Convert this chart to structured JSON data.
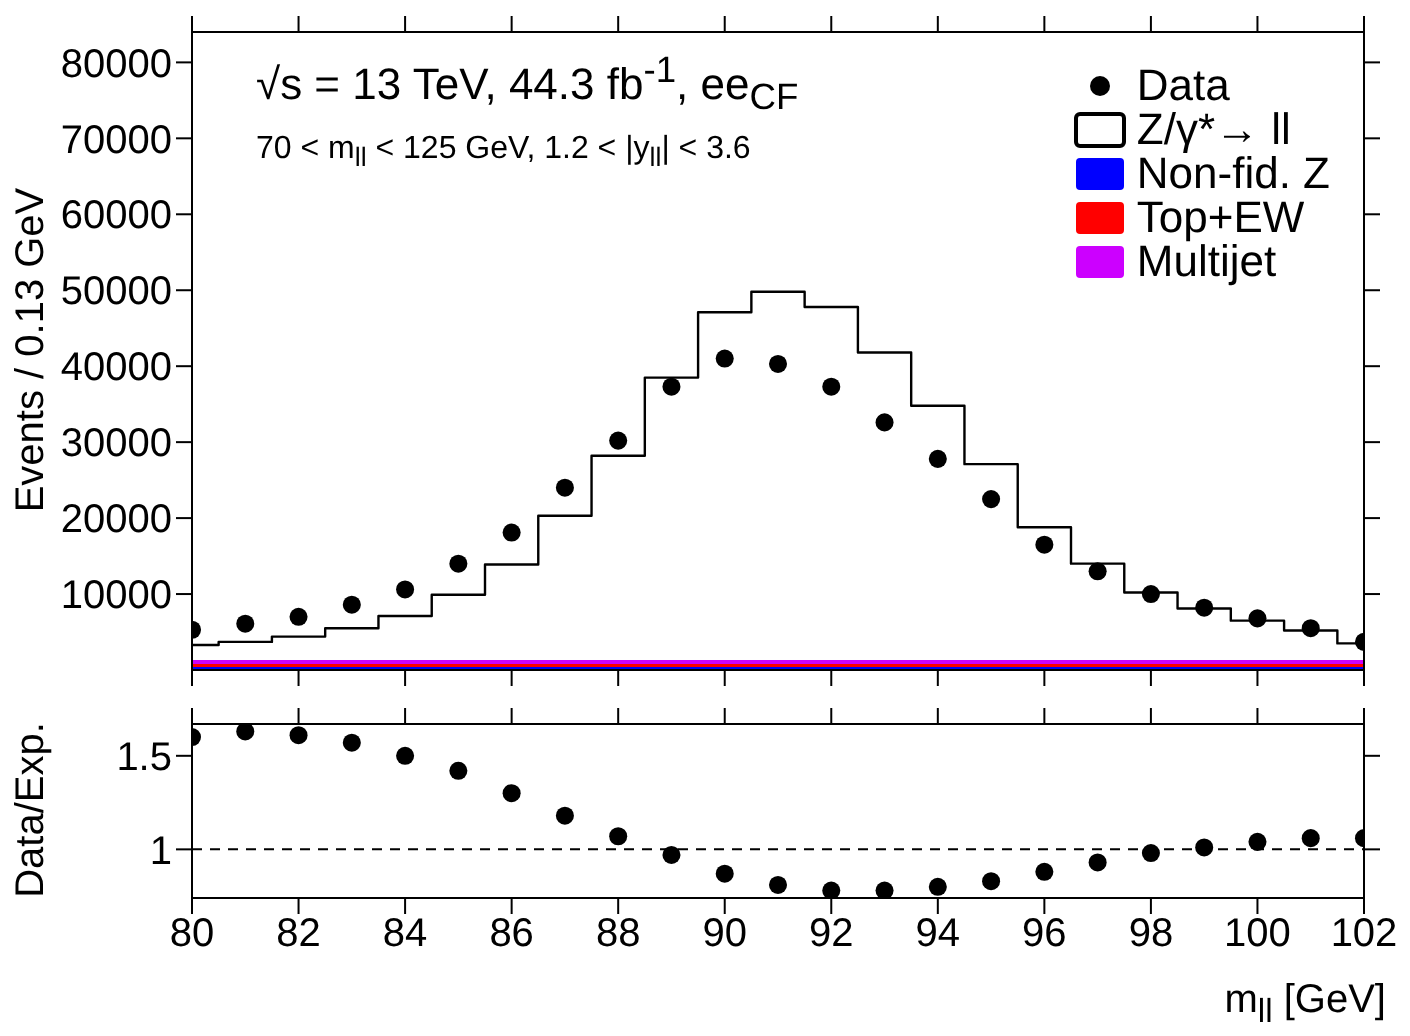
{
  "chart_data": [
    {
      "type": "scatter",
      "ylabel": "Events / 0.13 GeV",
      "annotations": [
        "√s = 13 TeV, 44.3 fb$^{-1}$, ee$_{CF}$",
        "70 < m$_{ll}$ < 125 GeV, 1.2 < |y$_{ll}$| < 3.6"
      ],
      "x": [
        80,
        81,
        82,
        83,
        84,
        85,
        86,
        87,
        88,
        89,
        90,
        91,
        92,
        93,
        94,
        95,
        96,
        97,
        98,
        99,
        100,
        101,
        102
      ],
      "series": [
        {
          "name": "Data",
          "color": "#000000",
          "marker": "circle",
          "values": [
            5300,
            6100,
            7000,
            8600,
            10600,
            14000,
            18100,
            24000,
            30200,
            37300,
            41000,
            40300,
            37300,
            32600,
            27800,
            22500,
            16500,
            13000,
            10000,
            8200,
            6800,
            5500,
            3700
          ]
        },
        {
          "name": "Z/γ*→ ll",
          "type": "step",
          "color": "#000000",
          "values": [
            3300,
            3700,
            4400,
            5500,
            7100,
            9900,
            13900,
            20300,
            28200,
            38500,
            47100,
            49800,
            47800,
            41800,
            34800,
            27100,
            18800,
            14000,
            10200,
            8100,
            6500,
            5200,
            3500
          ]
        },
        {
          "name": "Non-fid. Z",
          "type": "area",
          "color": "#0000ff",
          "values": [
            400,
            400,
            400,
            400,
            400,
            400,
            400,
            400,
            400,
            400,
            400,
            400,
            400,
            400,
            400,
            400,
            400,
            400,
            400,
            400,
            400,
            400,
            400
          ]
        },
        {
          "name": "Top+EW",
          "type": "area",
          "color": "#ff0000",
          "values": [
            400,
            400,
            400,
            400,
            400,
            400,
            400,
            400,
            400,
            400,
            400,
            400,
            400,
            400,
            400,
            400,
            400,
            400,
            400,
            400,
            400,
            400,
            400
          ]
        },
        {
          "name": "Multijet",
          "type": "area",
          "color": "#cc00ff",
          "values": [
            400,
            400,
            400,
            400,
            400,
            400,
            400,
            400,
            400,
            400,
            400,
            400,
            400,
            400,
            400,
            400,
            400,
            400,
            400,
            400,
            400,
            400,
            400
          ]
        }
      ],
      "stacked": true,
      "legend": "top right",
      "tick_labels": "y",
      "xlim": [
        80,
        102
      ],
      "xticks": [
        80,
        82,
        84,
        86,
        88,
        90,
        92,
        94,
        96,
        98,
        100,
        102
      ],
      "ylim": [
        0,
        84000
      ],
      "yticks": [
        10000,
        20000,
        30000,
        40000,
        50000,
        60000,
        70000,
        80000
      ]
    },
    {
      "type": "scatter",
      "ylabel": "Data/Exp.",
      "xlabel": "m$_{ll}$ [GeV]",
      "x": [
        80,
        81,
        82,
        83,
        84,
        85,
        86,
        87,
        88,
        89,
        90,
        91,
        92,
        93,
        94,
        95,
        96,
        97,
        98,
        99,
        100,
        101,
        102
      ],
      "series": [
        {
          "color": "#000000",
          "values": [
            1.6,
            1.63,
            1.61,
            1.57,
            1.5,
            1.42,
            1.3,
            1.18,
            1.07,
            0.97,
            0.87,
            0.81,
            0.78,
            0.78,
            0.8,
            0.83,
            0.88,
            0.93,
            0.98,
            1.01,
            1.04,
            1.06,
            1.06
          ]
        }
      ],
      "marker": "circle",
      "ref_lines": [
        {
          "axis": "y",
          "value": 1,
          "color": "#000000",
          "line_style": "dashed"
        }
      ],
      "xlim": [
        80,
        102
      ],
      "xticks": [
        80,
        82,
        84,
        86,
        88,
        90,
        92,
        94,
        96,
        98,
        100,
        102
      ],
      "ylim": [
        0.74,
        1.67
      ],
      "yticks": [
        1,
        1.5
      ]
    }
  ]
}
